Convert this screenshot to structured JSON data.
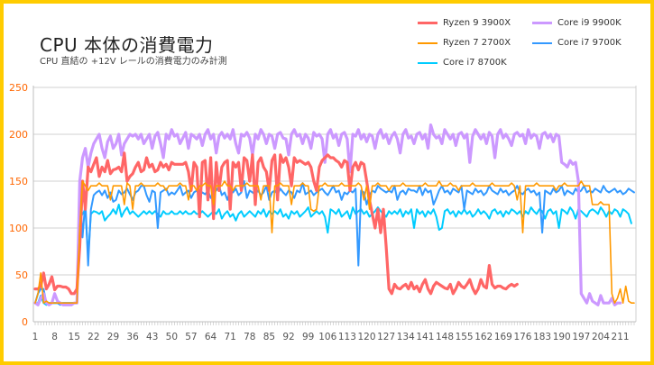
{
  "chart_data": {
    "type": "line",
    "title": "CPU 本体の消費電力",
    "subtitle": "CPU 直結の +12V レールの消費電力のみ計測",
    "xlabel": "",
    "ylabel": "",
    "ylim": [
      0,
      250
    ],
    "yticks": [
      0,
      50,
      100,
      150,
      200,
      250
    ],
    "x_start": 1,
    "xticks": [
      1,
      8,
      15,
      22,
      29,
      36,
      43,
      50,
      57,
      64,
      71,
      78,
      85,
      92,
      99,
      106,
      113,
      120,
      127,
      134,
      141,
      148,
      155,
      162,
      169,
      176,
      183,
      190,
      197,
      204,
      211
    ],
    "grid": true,
    "legend_position": "top-right",
    "series": [
      {
        "name": "Ryzen 9 3900X",
        "color": "#ff6666",
        "width": 3.2,
        "values": [
          35,
          35,
          38,
          52,
          35,
          40,
          48,
          34,
          38,
          38,
          37,
          37,
          35,
          30,
          30,
          35,
          80,
          150,
          120,
          165,
          160,
          168,
          175,
          155,
          165,
          160,
          172,
          158,
          162,
          163,
          165,
          160,
          180,
          150,
          155,
          158,
          165,
          170,
          160,
          162,
          175,
          165,
          168,
          160,
          162,
          170,
          165,
          168,
          162,
          170,
          168,
          168,
          168,
          168,
          170,
          160,
          140,
          170,
          165,
          112,
          170,
          172,
          130,
          175,
          110,
          170,
          140,
          165,
          170,
          172,
          120,
          170,
          165,
          170,
          140,
          175,
          172,
          150,
          178,
          125,
          170,
          175,
          165,
          160,
          140,
          172,
          178,
          130,
          178,
          170,
          175,
          165,
          145,
          175,
          170,
          172,
          170,
          168,
          170,
          165,
          150,
          140,
          165,
          172,
          175,
          178,
          175,
          175,
          172,
          170,
          165,
          172,
          170,
          140,
          165,
          170,
          162,
          170,
          168,
          150,
          130,
          115,
          100,
          120,
          95,
          120,
          80,
          35,
          30,
          40,
          36,
          35,
          38,
          40,
          35,
          42,
          35,
          38,
          32,
          40,
          45,
          35,
          30,
          38,
          42,
          40,
          38,
          36,
          35,
          40,
          30,
          35,
          42,
          38,
          36,
          40,
          45,
          36,
          30,
          35,
          45,
          38,
          36,
          60,
          40,
          36,
          38,
          38,
          36,
          35,
          38,
          40,
          38,
          40
        ]
      },
      {
        "name": "Core i9 9900K",
        "color": "#cc99ff",
        "width": 3.2,
        "values": [
          20,
          18,
          25,
          30,
          20,
          18,
          20,
          30,
          22,
          20,
          18,
          18,
          18,
          18,
          20,
          20,
          150,
          175,
          185,
          165,
          180,
          190,
          195,
          200,
          185,
          175,
          192,
          198,
          185,
          190,
          200,
          178,
          190,
          195,
          200,
          198,
          200,
          195,
          200,
          190,
          195,
          200,
          185,
          198,
          202,
          190,
          175,
          200,
          195,
          205,
          198,
          200,
          190,
          196,
          202,
          185,
          200,
          198,
          195,
          200,
          188,
          200,
          205,
          195,
          200,
          180,
          198,
          202,
          196,
          200,
          195,
          205,
          190,
          180,
          200,
          198,
          202,
          196,
          178,
          200,
          195,
          205,
          200,
          190,
          200,
          198,
          185,
          200,
          202,
          196,
          195,
          178,
          200,
          205,
          198,
          200,
          190,
          200,
          196,
          185,
          202,
          198,
          200,
          195,
          170,
          200,
          205,
          196,
          200,
          188,
          200,
          202,
          195,
          160,
          200,
          198,
          205,
          195,
          200,
          192,
          200,
          198,
          185,
          200,
          205,
          196,
          200,
          190,
          198,
          202,
          195,
          180,
          200,
          205,
          196,
          198,
          190,
          200,
          202,
          195,
          200,
          185,
          210,
          200,
          196,
          198,
          190,
          205,
          200,
          195,
          200,
          188,
          200,
          202,
          196,
          200,
          170,
          198,
          205,
          200,
          195,
          200,
          190,
          202,
          198,
          175,
          200,
          205,
          196,
          200,
          195,
          188,
          200,
          202,
          198,
          200,
          190,
          205,
          196,
          200,
          198,
          185,
          200,
          202,
          196,
          200,
          192,
          200,
          198,
          170,
          168,
          165,
          172,
          168,
          170,
          150,
          30,
          25,
          20,
          30,
          22,
          20,
          18,
          28,
          20,
          20,
          20,
          25,
          18,
          20,
          20
        ]
      },
      {
        "name": "Ryzen 7 2700X",
        "color": "#ff9900",
        "width": 1.6,
        "values": [
          20,
          30,
          52,
          20,
          22,
          20,
          20,
          20,
          20,
          20,
          20,
          20,
          20,
          20,
          20,
          20,
          100,
          150,
          145,
          140,
          145,
          145,
          145,
          148,
          145,
          145,
          145,
          130,
          145,
          145,
          145,
          145,
          125,
          148,
          145,
          120,
          145,
          145,
          148,
          145,
          145,
          145,
          145,
          145,
          148,
          145,
          145,
          140,
          145,
          145,
          145,
          145,
          148,
          145,
          145,
          130,
          145,
          145,
          140,
          145,
          145,
          148,
          145,
          145,
          125,
          145,
          145,
          145,
          150,
          145,
          145,
          140,
          145,
          145,
          145,
          145,
          148,
          145,
          145,
          145,
          145,
          130,
          145,
          145,
          145,
          95,
          145,
          145,
          148,
          145,
          145,
          145,
          125,
          145,
          145,
          145,
          148,
          145,
          145,
          120,
          118,
          120,
          145,
          145,
          148,
          145,
          145,
          145,
          145,
          145,
          148,
          145,
          145,
          145,
          145,
          145,
          148,
          145,
          130,
          145,
          120,
          145,
          145,
          148,
          145,
          145,
          145,
          140,
          145,
          145,
          145,
          145,
          148,
          145,
          145,
          145,
          145,
          145,
          145,
          145,
          148,
          145,
          145,
          145,
          145,
          150,
          145,
          145,
          145,
          148,
          145,
          145,
          140,
          145,
          145,
          145,
          145,
          148,
          145,
          145,
          145,
          145,
          145,
          145,
          148,
          145,
          145,
          145,
          145,
          145,
          145,
          148,
          145,
          130,
          145,
          95,
          145,
          145,
          145,
          145,
          148,
          145,
          145,
          145,
          145,
          145,
          145,
          140,
          145,
          145,
          148,
          145,
          145,
          145,
          145,
          145,
          150,
          145,
          145,
          145,
          125,
          125,
          125,
          128,
          125,
          125,
          125,
          30,
          20,
          25,
          35,
          20,
          38,
          22,
          20,
          20
        ]
      },
      {
        "name": "Core i7 9700K",
        "color": "#3399ff",
        "width": 2,
        "values": [
          20,
          30,
          35,
          35,
          20,
          20,
          20,
          20,
          20,
          18,
          20,
          20,
          20,
          20,
          20,
          20,
          140,
          90,
          130,
          60,
          120,
          135,
          138,
          140,
          135,
          140,
          132,
          138,
          128,
          130,
          140,
          136,
          138,
          142,
          136,
          130,
          138,
          140,
          145,
          145,
          135,
          128,
          140,
          138,
          100,
          138,
          140,
          142,
          135,
          138,
          136,
          140,
          145,
          135,
          138,
          140,
          132,
          138,
          140,
          135,
          138,
          136,
          140,
          132,
          138,
          140,
          145,
          135,
          138,
          130,
          140,
          138,
          142,
          135,
          138,
          150,
          132,
          140,
          138,
          136,
          140,
          135,
          138,
          145,
          130,
          138,
          140,
          136,
          142,
          138,
          135,
          140,
          138,
          132,
          140,
          138,
          148,
          136,
          138,
          140,
          135,
          138,
          140,
          142,
          138,
          135,
          140,
          145,
          138,
          140,
          130,
          138,
          136,
          140,
          138,
          142,
          60,
          140,
          138,
          125,
          135,
          140,
          138,
          145,
          142,
          140,
          138,
          140,
          138,
          145,
          130,
          138,
          140,
          136,
          142,
          140,
          140,
          138,
          145,
          135,
          142,
          138,
          140,
          125,
          132,
          140,
          145,
          138,
          140,
          136,
          142,
          140,
          138,
          145,
          120,
          140,
          138,
          136,
          142,
          138,
          140,
          135,
          138,
          145,
          140,
          138,
          136,
          142,
          138,
          140,
          135,
          138,
          140,
          145,
          138,
          136,
          140,
          142,
          138,
          140,
          135,
          138,
          95,
          140,
          138,
          136,
          142,
          138,
          140,
          145,
          135,
          140,
          138,
          136,
          142,
          138,
          140,
          145,
          138,
          140,
          138,
          142,
          140,
          138,
          145,
          140,
          138,
          140,
          142,
          138,
          140,
          136,
          138,
          142,
          140,
          138
        ]
      },
      {
        "name": "Core i7 8700K",
        "color": "#00ccff",
        "width": 2,
        "values": [
          20,
          20,
          28,
          20,
          18,
          20,
          20,
          20,
          20,
          20,
          20,
          20,
          20,
          20,
          20,
          20,
          110,
          115,
          120,
          70,
          115,
          118,
          117,
          115,
          118,
          108,
          112,
          115,
          120,
          115,
          125,
          112,
          118,
          122,
          115,
          118,
          115,
          112,
          115,
          118,
          115,
          118,
          115,
          118,
          115,
          112,
          118,
          115,
          115,
          118,
          115,
          115,
          118,
          115,
          118,
          115,
          115,
          118,
          115,
          115,
          118,
          115,
          112,
          115,
          118,
          115,
          120,
          110,
          115,
          118,
          112,
          115,
          108,
          115,
          118,
          112,
          115,
          118,
          115,
          112,
          118,
          115,
          120,
          112,
          118,
          115,
          118,
          115,
          120,
          112,
          115,
          110,
          118,
          115,
          118,
          112,
          115,
          118,
          122,
          112,
          115,
          118,
          115,
          118,
          112,
          95,
          120,
          118,
          115,
          120,
          112,
          115,
          118,
          110,
          122,
          115,
          118,
          120,
          115,
          118,
          112,
          115,
          118,
          122,
          118,
          115,
          112,
          118,
          115,
          118,
          115,
          120,
          112,
          118,
          115,
          120,
          100,
          120,
          115,
          118,
          112,
          118,
          115,
          120,
          112,
          98,
          100,
          118,
          120,
          115,
          118,
          112,
          118,
          115,
          120,
          115,
          118,
          112,
          115,
          120,
          115,
          118,
          115,
          110,
          118,
          120,
          115,
          118,
          112,
          118,
          115,
          120,
          118,
          115,
          118,
          112,
          118,
          115,
          122,
          118,
          115,
          120,
          118,
          110,
          118,
          120,
          115,
          118,
          100,
          120,
          118,
          115,
          122,
          118,
          110,
          120,
          118,
          115,
          112,
          118,
          120,
          118,
          115,
          122,
          118,
          112,
          118,
          115,
          120,
          118,
          112,
          120,
          118,
          115,
          105
        ]
      }
    ]
  }
}
